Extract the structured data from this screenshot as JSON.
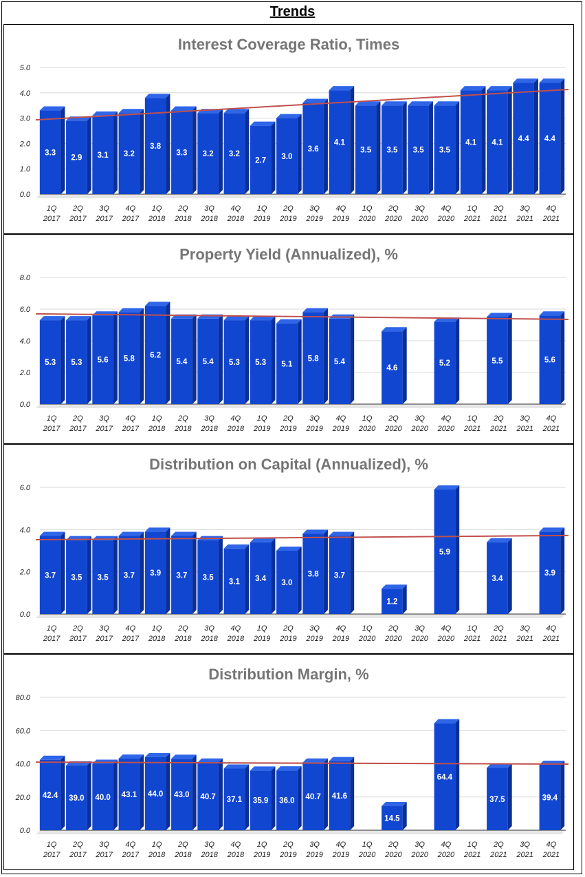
{
  "page": {
    "title": "Trends"
  },
  "colors": {
    "bar": "#1146d1",
    "bar_top": "#2f66e8",
    "bar_side": "#0a2f99",
    "trend": "#c0504d",
    "grid": "#d9d9d9"
  },
  "chart_data": [
    {
      "type": "bar",
      "title": "Interest Coverage Ratio, Times",
      "categories": [
        [
          "1Q",
          "2017"
        ],
        [
          "2Q",
          "2017"
        ],
        [
          "3Q",
          "2017"
        ],
        [
          "4Q",
          "2017"
        ],
        [
          "1Q",
          "2018"
        ],
        [
          "2Q",
          "2018"
        ],
        [
          "3Q",
          "2018"
        ],
        [
          "4Q",
          "2018"
        ],
        [
          "1Q",
          "2019"
        ],
        [
          "2Q",
          "2019"
        ],
        [
          "3Q",
          "2019"
        ],
        [
          "4Q",
          "2019"
        ],
        [
          "1Q",
          "2020"
        ],
        [
          "2Q",
          "2020"
        ],
        [
          "3Q",
          "2020"
        ],
        [
          "4Q",
          "2020"
        ],
        [
          "1Q",
          "2021"
        ],
        [
          "2Q",
          "2021"
        ],
        [
          "3Q",
          "2021"
        ],
        [
          "4Q",
          "2021"
        ]
      ],
      "values": [
        3.3,
        2.9,
        3.1,
        3.2,
        3.8,
        3.3,
        3.2,
        3.2,
        2.7,
        3.0,
        3.6,
        4.1,
        3.5,
        3.5,
        3.5,
        3.5,
        4.1,
        4.1,
        4.4,
        4.4
      ],
      "labels": [
        "3.3",
        "2.9",
        "3.1",
        "3.2",
        "3.8",
        "3.3",
        "3.2",
        "3.2",
        "2.7",
        "3.0",
        "3.6",
        "4.1",
        "3.5",
        "3.5",
        "3.5",
        "3.5",
        "4.1",
        "4.1",
        "4.4",
        "4.4"
      ],
      "yticks": [
        "0.0",
        "1.0",
        "2.0",
        "3.0",
        "4.0",
        "5.0"
      ],
      "ylim": [
        0,
        5
      ],
      "trendline": [
        2.93,
        4.13
      ],
      "xlabel": "",
      "ylabel": ""
    },
    {
      "type": "bar",
      "title": "Property Yield (Annualized), %",
      "categories": [
        [
          "1Q",
          "2017"
        ],
        [
          "2Q",
          "2017"
        ],
        [
          "3Q",
          "2017"
        ],
        [
          "4Q",
          "2017"
        ],
        [
          "1Q",
          "2018"
        ],
        [
          "2Q",
          "2018"
        ],
        [
          "3Q",
          "2018"
        ],
        [
          "4Q",
          "2018"
        ],
        [
          "1Q",
          "2019"
        ],
        [
          "2Q",
          "2019"
        ],
        [
          "3Q",
          "2019"
        ],
        [
          "4Q",
          "2019"
        ],
        [
          "1Q",
          "2020"
        ],
        [
          "2Q",
          "2020"
        ],
        [
          "3Q",
          "2020"
        ],
        [
          "4Q",
          "2020"
        ],
        [
          "1Q",
          "2021"
        ],
        [
          "2Q",
          "2021"
        ],
        [
          "3Q",
          "2021"
        ],
        [
          "4Q",
          "2021"
        ]
      ],
      "values": [
        5.3,
        5.3,
        5.6,
        5.8,
        6.2,
        5.4,
        5.4,
        5.3,
        5.3,
        5.1,
        5.8,
        5.4,
        null,
        4.6,
        null,
        5.2,
        null,
        5.5,
        null,
        5.6
      ],
      "labels": [
        "5.3",
        "5.3",
        "5.6",
        "5.8",
        "6.2",
        "5.4",
        "5.4",
        "5.3",
        "5.3",
        "5.1",
        "5.8",
        "5.4",
        "",
        "4.6",
        "",
        "5.2",
        "",
        "5.5",
        "",
        "5.6"
      ],
      "yticks": [
        "0.0",
        "2.0",
        "4.0",
        "6.0",
        "8.0"
      ],
      "ylim": [
        0,
        8
      ],
      "trendline": [
        5.7,
        5.35
      ],
      "xlabel": "",
      "ylabel": ""
    },
    {
      "type": "bar",
      "title": "Distribution on Capital (Annualized), %",
      "categories": [
        [
          "1Q",
          "2017"
        ],
        [
          "2Q",
          "2017"
        ],
        [
          "3Q",
          "2017"
        ],
        [
          "4Q",
          "2017"
        ],
        [
          "1Q",
          "2018"
        ],
        [
          "2Q",
          "2018"
        ],
        [
          "3Q",
          "2018"
        ],
        [
          "4Q",
          "2018"
        ],
        [
          "1Q",
          "2019"
        ],
        [
          "2Q",
          "2019"
        ],
        [
          "3Q",
          "2019"
        ],
        [
          "4Q",
          "2019"
        ],
        [
          "1Q",
          "2020"
        ],
        [
          "2Q",
          "2020"
        ],
        [
          "3Q",
          "2020"
        ],
        [
          "4Q",
          "2020"
        ],
        [
          "1Q",
          "2021"
        ],
        [
          "2Q",
          "2021"
        ],
        [
          "3Q",
          "2021"
        ],
        [
          "4Q",
          "2021"
        ]
      ],
      "values": [
        3.7,
        3.5,
        3.5,
        3.7,
        3.9,
        3.7,
        3.5,
        3.1,
        3.4,
        3.0,
        3.8,
        3.7,
        null,
        1.2,
        null,
        5.9,
        null,
        3.4,
        null,
        3.9
      ],
      "labels": [
        "3.7",
        "3.5",
        "3.5",
        "3.7",
        "3.9",
        "3.7",
        "3.5",
        "3.1",
        "3.4",
        "3.0",
        "3.8",
        "3.7",
        "",
        "1.2",
        "",
        "5.9",
        "",
        "3.4",
        "",
        "3.9"
      ],
      "yticks": [
        "0.0",
        "2.0",
        "4.0",
        "6.0"
      ],
      "ylim": [
        0,
        6
      ],
      "trendline": [
        3.52,
        3.72
      ],
      "xlabel": "",
      "ylabel": ""
    },
    {
      "type": "bar",
      "title": "Distribution Margin, %",
      "categories": [
        [
          "1Q",
          "2017"
        ],
        [
          "2Q",
          "2017"
        ],
        [
          "3Q",
          "2017"
        ],
        [
          "4Q",
          "2017"
        ],
        [
          "1Q",
          "2018"
        ],
        [
          "2Q",
          "2018"
        ],
        [
          "3Q",
          "2018"
        ],
        [
          "4Q",
          "2018"
        ],
        [
          "1Q",
          "2019"
        ],
        [
          "2Q",
          "2019"
        ],
        [
          "3Q",
          "2019"
        ],
        [
          "4Q",
          "2019"
        ],
        [
          "1Q",
          "2020"
        ],
        [
          "2Q",
          "2020"
        ],
        [
          "3Q",
          "2020"
        ],
        [
          "4Q",
          "2020"
        ],
        [
          "1Q",
          "2021"
        ],
        [
          "2Q",
          "2021"
        ],
        [
          "3Q",
          "2021"
        ],
        [
          "4Q",
          "2021"
        ]
      ],
      "values": [
        42.4,
        39.0,
        40.0,
        43.1,
        44.0,
        43.0,
        40.7,
        37.1,
        35.9,
        36.0,
        40.7,
        41.6,
        null,
        14.5,
        null,
        64.4,
        null,
        37.5,
        null,
        39.4
      ],
      "labels": [
        "42.4",
        "39.0",
        "40.0",
        "43.1",
        "44.0",
        "43.0",
        "40.7",
        "37.1",
        "35.9",
        "36.0",
        "40.7",
        "41.6",
        "",
        "14.5",
        "",
        "64.4",
        "",
        "37.5",
        "",
        "39.4"
      ],
      "yticks": [
        "0.0",
        "20.0",
        "40.0",
        "60.0",
        "80.0"
      ],
      "ylim": [
        0,
        80
      ],
      "trendline": [
        41.0,
        39.8
      ],
      "xlabel": "",
      "ylabel": ""
    }
  ]
}
